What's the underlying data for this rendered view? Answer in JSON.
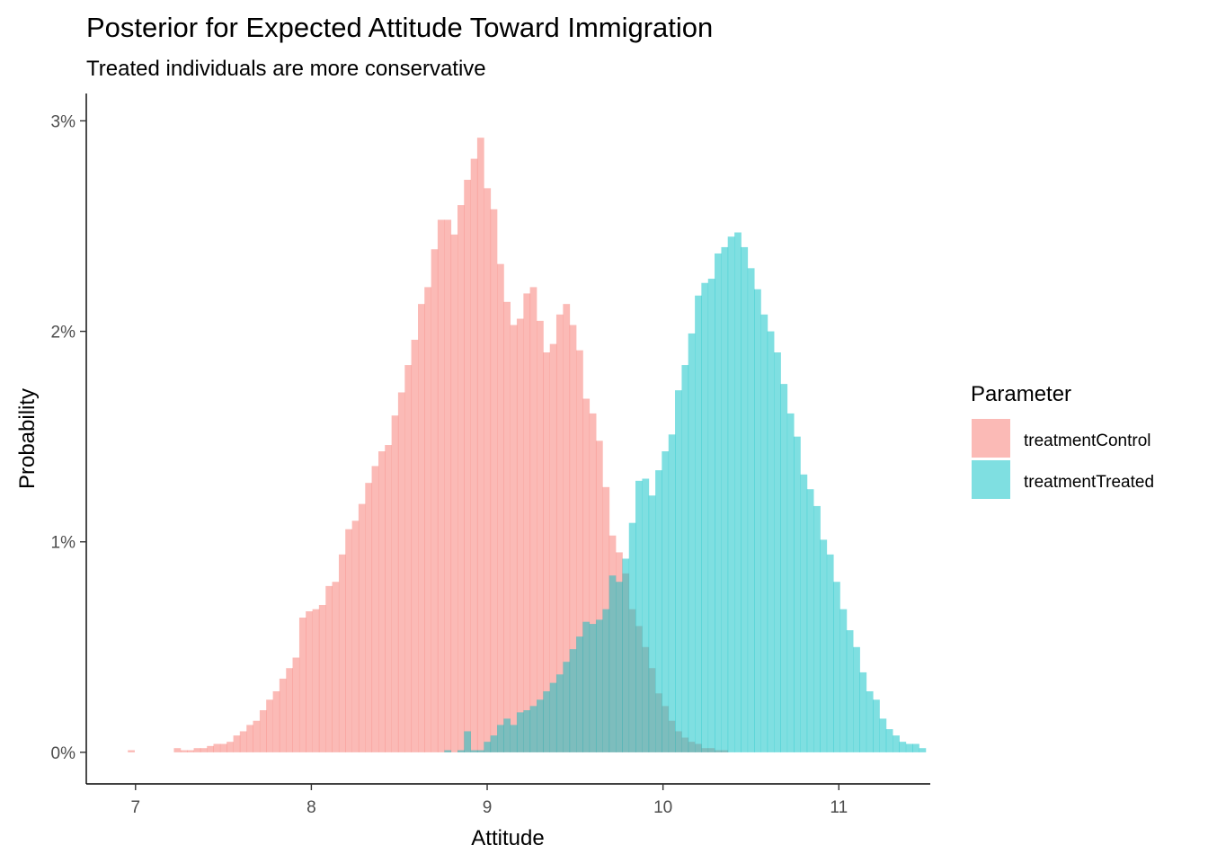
{
  "chart_data": {
    "type": "bar",
    "subtype": "overlapping-histogram",
    "title": "Posterior for Expected Attitude Toward Immigration",
    "subtitle": "Treated individuals are more conservative",
    "xlabel": "Attitude",
    "ylabel": "Probability",
    "xlim": [
      6.72,
      11.52
    ],
    "ylim": [
      -0.0015,
      0.0313
    ],
    "x_ticks": [
      {
        "value": 7,
        "label": "7"
      },
      {
        "value": 8,
        "label": "8"
      },
      {
        "value": 9,
        "label": "9"
      },
      {
        "value": 10,
        "label": "10"
      },
      {
        "value": 11,
        "label": "11"
      }
    ],
    "y_ticks": [
      {
        "value": 0,
        "label": "0%"
      },
      {
        "value": 0.01,
        "label": "1%"
      },
      {
        "value": 0.02,
        "label": "2%"
      },
      {
        "value": 0.03,
        "label": "3%"
      }
    ],
    "grid": false,
    "legend": {
      "title": "Parameter",
      "position": "right"
    },
    "bin_width": 0.0375,
    "bar_opacity": 0.5,
    "series": [
      {
        "name": "treatmentControl",
        "color": "#F8766D",
        "bins": [
          [
            6.975,
            0.0001
          ],
          [
            7.237,
            0.0002
          ],
          [
            7.275,
            0.0001
          ],
          [
            7.312,
            0.0001
          ],
          [
            7.35,
            0.0002
          ],
          [
            7.387,
            0.0002
          ],
          [
            7.425,
            0.0003
          ],
          [
            7.462,
            0.0004
          ],
          [
            7.5,
            0.0004
          ],
          [
            7.537,
            0.0005
          ],
          [
            7.575,
            0.0008
          ],
          [
            7.612,
            0.001
          ],
          [
            7.65,
            0.0013
          ],
          [
            7.687,
            0.0015
          ],
          [
            7.725,
            0.002
          ],
          [
            7.762,
            0.0025
          ],
          [
            7.8,
            0.0029
          ],
          [
            7.837,
            0.0035
          ],
          [
            7.875,
            0.004
          ],
          [
            7.912,
            0.0045
          ],
          [
            7.95,
            0.0064
          ],
          [
            7.987,
            0.0067
          ],
          [
            8.025,
            0.0068
          ],
          [
            8.062,
            0.007
          ],
          [
            8.1,
            0.0079
          ],
          [
            8.137,
            0.0081
          ],
          [
            8.175,
            0.0094
          ],
          [
            8.212,
            0.0106
          ],
          [
            8.25,
            0.011
          ],
          [
            8.287,
            0.0118
          ],
          [
            8.325,
            0.0128
          ],
          [
            8.362,
            0.0136
          ],
          [
            8.4,
            0.0143
          ],
          [
            8.437,
            0.0146
          ],
          [
            8.475,
            0.016
          ],
          [
            8.512,
            0.0171
          ],
          [
            8.55,
            0.0184
          ],
          [
            8.587,
            0.0196
          ],
          [
            8.625,
            0.0213
          ],
          [
            8.662,
            0.0221
          ],
          [
            8.7,
            0.0239
          ],
          [
            8.737,
            0.0253
          ],
          [
            8.775,
            0.0253
          ],
          [
            8.812,
            0.0246
          ],
          [
            8.85,
            0.026
          ],
          [
            8.887,
            0.0272
          ],
          [
            8.925,
            0.0282
          ],
          [
            8.962,
            0.0292
          ],
          [
            9.0,
            0.0268
          ],
          [
            9.037,
            0.0258
          ],
          [
            9.075,
            0.0232
          ],
          [
            9.112,
            0.0214
          ],
          [
            9.15,
            0.0203
          ],
          [
            9.187,
            0.0206
          ],
          [
            9.225,
            0.0218
          ],
          [
            9.262,
            0.0221
          ],
          [
            9.3,
            0.0205
          ],
          [
            9.337,
            0.019
          ],
          [
            9.375,
            0.0194
          ],
          [
            9.412,
            0.0208
          ],
          [
            9.45,
            0.0213
          ],
          [
            9.487,
            0.0203
          ],
          [
            9.525,
            0.0191
          ],
          [
            9.562,
            0.0168
          ],
          [
            9.6,
            0.0161
          ],
          [
            9.637,
            0.0148
          ],
          [
            9.675,
            0.0126
          ],
          [
            9.712,
            0.0103
          ],
          [
            9.75,
            0.0095
          ],
          [
            9.787,
            0.0085
          ],
          [
            9.825,
            0.0068
          ],
          [
            9.862,
            0.006
          ],
          [
            9.9,
            0.005
          ],
          [
            9.937,
            0.004
          ],
          [
            9.975,
            0.0028
          ],
          [
            10.012,
            0.0022
          ],
          [
            10.05,
            0.0015
          ],
          [
            10.087,
            0.001
          ],
          [
            10.125,
            0.0007
          ],
          [
            10.162,
            0.0005
          ],
          [
            10.2,
            0.0004
          ],
          [
            10.237,
            0.0002
          ],
          [
            10.275,
            0.0002
          ],
          [
            10.312,
            0.0001
          ],
          [
            10.35,
            0.0001
          ]
        ]
      },
      {
        "name": "treatmentTreated",
        "color": "#00BFC4",
        "bins": [
          [
            8.775,
            0.0001
          ],
          [
            8.85,
            0.0001
          ],
          [
            8.887,
            0.001
          ],
          [
            8.925,
            0.0001
          ],
          [
            8.962,
            0.0001
          ],
          [
            9.0,
            0.0005
          ],
          [
            9.037,
            0.0008
          ],
          [
            9.075,
            0.0013
          ],
          [
            9.112,
            0.0016
          ],
          [
            9.15,
            0.0013
          ],
          [
            9.187,
            0.0019
          ],
          [
            9.225,
            0.002
          ],
          [
            9.262,
            0.0022
          ],
          [
            9.3,
            0.0025
          ],
          [
            9.337,
            0.0029
          ],
          [
            9.375,
            0.0033
          ],
          [
            9.412,
            0.0037
          ],
          [
            9.45,
            0.0043
          ],
          [
            9.487,
            0.0049
          ],
          [
            9.525,
            0.0055
          ],
          [
            9.562,
            0.0062
          ],
          [
            9.6,
            0.0061
          ],
          [
            9.637,
            0.0063
          ],
          [
            9.675,
            0.0068
          ],
          [
            9.712,
            0.0084
          ],
          [
            9.75,
            0.0081
          ],
          [
            9.787,
            0.0092
          ],
          [
            9.825,
            0.0109
          ],
          [
            9.862,
            0.0129
          ],
          [
            9.9,
            0.013
          ],
          [
            9.937,
            0.0122
          ],
          [
            9.975,
            0.0134
          ],
          [
            10.012,
            0.0143
          ],
          [
            10.05,
            0.0151
          ],
          [
            10.087,
            0.0172
          ],
          [
            10.125,
            0.0184
          ],
          [
            10.162,
            0.0199
          ],
          [
            10.2,
            0.0217
          ],
          [
            10.237,
            0.0223
          ],
          [
            10.275,
            0.0225
          ],
          [
            10.312,
            0.0237
          ],
          [
            10.35,
            0.024
          ],
          [
            10.387,
            0.0245
          ],
          [
            10.425,
            0.0247
          ],
          [
            10.462,
            0.024
          ],
          [
            10.5,
            0.023
          ],
          [
            10.537,
            0.022
          ],
          [
            10.575,
            0.0208
          ],
          [
            10.612,
            0.02
          ],
          [
            10.65,
            0.019
          ],
          [
            10.687,
            0.0175
          ],
          [
            10.725,
            0.0161
          ],
          [
            10.762,
            0.015
          ],
          [
            10.8,
            0.0132
          ],
          [
            10.837,
            0.0125
          ],
          [
            10.875,
            0.0117
          ],
          [
            10.912,
            0.0101
          ],
          [
            10.95,
            0.0094
          ],
          [
            10.987,
            0.0081
          ],
          [
            11.025,
            0.0068
          ],
          [
            11.062,
            0.0058
          ],
          [
            11.1,
            0.005
          ],
          [
            11.137,
            0.0038
          ],
          [
            11.175,
            0.0029
          ],
          [
            11.212,
            0.0025
          ],
          [
            11.25,
            0.0016
          ],
          [
            11.287,
            0.0011
          ],
          [
            11.325,
            0.0008
          ],
          [
            11.362,
            0.0005
          ],
          [
            11.4,
            0.0004
          ],
          [
            11.437,
            0.0004
          ],
          [
            11.475,
            0.0002
          ]
        ]
      }
    ]
  }
}
